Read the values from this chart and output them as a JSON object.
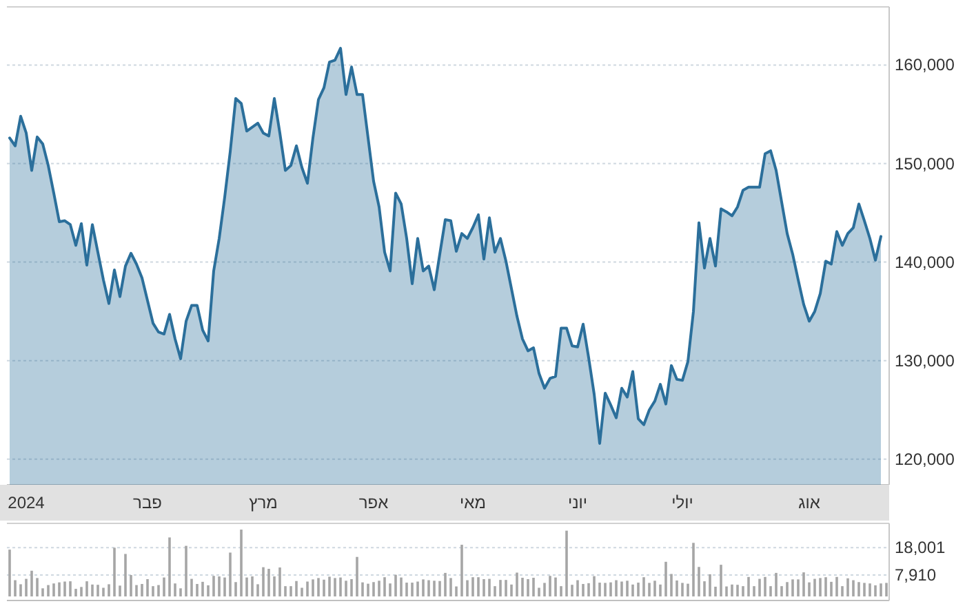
{
  "chart_data": [
    {
      "type": "area",
      "ylim": [
        117400,
        165900
      ],
      "yticks": [
        {
          "value": 120000,
          "label": "120,000"
        },
        {
          "value": 130000,
          "label": "130,000"
        },
        {
          "value": 140000,
          "label": "140,000"
        },
        {
          "value": 150000,
          "label": "150,000"
        },
        {
          "value": 160000,
          "label": "160,000"
        }
      ],
      "categories": [
        null,
        null,
        null,
        "2024",
        null,
        null,
        null,
        null,
        null,
        null,
        null,
        null,
        null,
        null,
        null,
        null,
        null,
        null,
        null,
        null,
        null,
        null,
        null,
        null,
        null,
        "פבר",
        null,
        null,
        null,
        null,
        null,
        null,
        null,
        null,
        null,
        null,
        null,
        null,
        null,
        null,
        null,
        null,
        null,
        null,
        null,
        null,
        "מרץ",
        null,
        null,
        null,
        null,
        null,
        null,
        null,
        null,
        null,
        null,
        null,
        null,
        null,
        null,
        null,
        null,
        null,
        null,
        null,
        "אפר",
        null,
        null,
        null,
        null,
        null,
        null,
        null,
        null,
        null,
        null,
        null,
        null,
        null,
        null,
        null,
        null,
        null,
        "מאי",
        null,
        null,
        null,
        null,
        null,
        null,
        null,
        null,
        null,
        null,
        null,
        null,
        null,
        null,
        null,
        null,
        null,
        null,
        "יוני",
        null,
        null,
        null,
        null,
        null,
        null,
        null,
        null,
        null,
        null,
        null,
        null,
        null,
        null,
        null,
        null,
        null,
        null,
        "יולי",
        null,
        null,
        null,
        null,
        null,
        null,
        null,
        null,
        null,
        null,
        null,
        null,
        null,
        null,
        null,
        null,
        null,
        null,
        null,
        null,
        null,
        null,
        "אוג",
        null,
        null,
        null,
        null,
        null,
        null,
        null,
        null,
        null,
        null,
        null,
        null,
        null,
        null
      ],
      "grid": "y",
      "series": [
        {
          "color": "#2b6f9b",
          "values": [
            152600,
            151800,
            154800,
            153100,
            149300,
            152700,
            152000,
            149800,
            147000,
            144100,
            144200,
            143800,
            141700,
            143900,
            139700,
            143800,
            141000,
            138200,
            135800,
            139200,
            136500,
            139600,
            140900,
            139800,
            138400,
            136100,
            133800,
            132900,
            132700,
            134700,
            132200,
            130200,
            134000,
            135600,
            135600,
            133100,
            132000,
            139100,
            142400,
            146600,
            151200,
            156600,
            156100,
            153300,
            153700,
            154100,
            153100,
            152800,
            156600,
            153100,
            149300,
            149800,
            151800,
            149600,
            148000,
            152600,
            156500,
            157700,
            160300,
            160500,
            161700,
            157000,
            159800,
            157000,
            157000,
            152600,
            148200,
            145600,
            141000,
            139100,
            147000,
            145900,
            142400,
            137800,
            142400,
            139100,
            139600,
            137200,
            140800,
            144300,
            144200,
            141100,
            142900,
            142400,
            143500,
            144800,
            140300,
            144500,
            141000,
            142400,
            140100,
            137300,
            134500,
            132200,
            131000,
            131300,
            128700,
            127200,
            128200,
            128400,
            133300,
            133300,
            131500,
            131400,
            133700,
            130300,
            126600,
            121600,
            126700,
            125500,
            124200,
            127200,
            126300,
            128900,
            124100,
            123500,
            125000,
            125900,
            127600,
            125600,
            129500,
            128100,
            128000,
            129900,
            135000,
            144000,
            139400,
            142400,
            139600,
            145400,
            145100,
            144700,
            145600,
            147300,
            147600,
            147600,
            147600,
            151000,
            151300,
            149300,
            146100,
            142900,
            140800,
            138200,
            135700,
            134000,
            135000,
            136800,
            140100,
            139800,
            143100,
            141700,
            142900,
            143500,
            145900,
            144200,
            142400,
            140200,
            142600,
            null
          ]
        }
      ]
    },
    {
      "type": "bar",
      "ylim": [
        -1500,
        27000
      ],
      "tick_labels": "y",
      "grid": "y",
      "yticks": [
        {
          "value": 7910,
          "label": "7,910"
        },
        {
          "value": 18001,
          "label": "18,001"
        }
      ],
      "categories": [
        null,
        null,
        null,
        null,
        null,
        null,
        null,
        null,
        null,
        null,
        null,
        null,
        null,
        null,
        null,
        null,
        null,
        null,
        null,
        null,
        null,
        null,
        null,
        null,
        null,
        null,
        null,
        null,
        null,
        null,
        null,
        null,
        null,
        null,
        null,
        null,
        null,
        null,
        null,
        null,
        null,
        null,
        null,
        null,
        null,
        null,
        null,
        null,
        null,
        null,
        null,
        null,
        null,
        null,
        null,
        null,
        null,
        null,
        null,
        null,
        null,
        null,
        null,
        null,
        null,
        null,
        null,
        null,
        null,
        null,
        null,
        null,
        null,
        null,
        null,
        null,
        null,
        null,
        null,
        null,
        null,
        null,
        null,
        null,
        null,
        null,
        null,
        null,
        null,
        null,
        null,
        null,
        null,
        null,
        null,
        null,
        null,
        null,
        null,
        null,
        null,
        null,
        null,
        null,
        null,
        null,
        null,
        null,
        null,
        null,
        null,
        null,
        null,
        null,
        null,
        null,
        null,
        null,
        null,
        null,
        null,
        null,
        null,
        null,
        null,
        null,
        null,
        null,
        null,
        null,
        null,
        null,
        null,
        null,
        null,
        null,
        null,
        null,
        null,
        null,
        null,
        null,
        null,
        null,
        null,
        null,
        null,
        null,
        null,
        null,
        null,
        null,
        null,
        null,
        null,
        null,
        null,
        null,
        null,
        null
      ],
      "series": [
        {
          "color": "#a6a6a6",
          "values": [
            17300,
            6000,
            4500,
            6500,
            9500,
            6800,
            3000,
            4200,
            4800,
            5200,
            5500,
            5600,
            2800,
            3500,
            5600,
            4400,
            4300,
            3200,
            4500,
            18000,
            4000,
            15700,
            7900,
            4200,
            4600,
            6400,
            3800,
            4200,
            7000,
            21800,
            4800,
            3000,
            18700,
            6500,
            4600,
            5400,
            4100,
            7600,
            7400,
            7000,
            16200,
            5300,
            24700,
            7000,
            7400,
            4500,
            10800,
            10200,
            7400,
            10700,
            3800,
            3800,
            5700,
            3200,
            5500,
            6300,
            6800,
            6200,
            7300,
            6800,
            7000,
            5800,
            6400,
            14600,
            5200,
            4700,
            5300,
            5800,
            7100,
            4800,
            8000,
            7000,
            5100,
            5100,
            5500,
            6300,
            6000,
            5800,
            5700,
            8700,
            6800,
            3700,
            19100,
            6000,
            7100,
            7100,
            6400,
            6500,
            3800,
            6100,
            6100,
            4400,
            8800,
            6900,
            6400,
            6900,
            3200,
            5000,
            7600,
            7000,
            3800,
            24300,
            4300,
            6000,
            4600,
            4900,
            7500,
            5100,
            5000,
            5200,
            6000,
            5500,
            5800,
            4400,
            5100,
            7100,
            5000,
            5800,
            4400,
            12800,
            8300,
            5900,
            5000,
            4700,
            19800,
            10900,
            5600,
            8200,
            3600,
            11700,
            3700,
            4400,
            4300,
            3800,
            7200,
            3800,
            6500,
            7200,
            3800,
            8700,
            3800,
            5300,
            6300,
            6300,
            8900,
            5200,
            6500,
            6800,
            7100,
            5400,
            7200,
            3800,
            6700,
            6000,
            5300,
            5000,
            4800,
            4100,
            4800,
            5000
          ]
        }
      ]
    }
  ]
}
